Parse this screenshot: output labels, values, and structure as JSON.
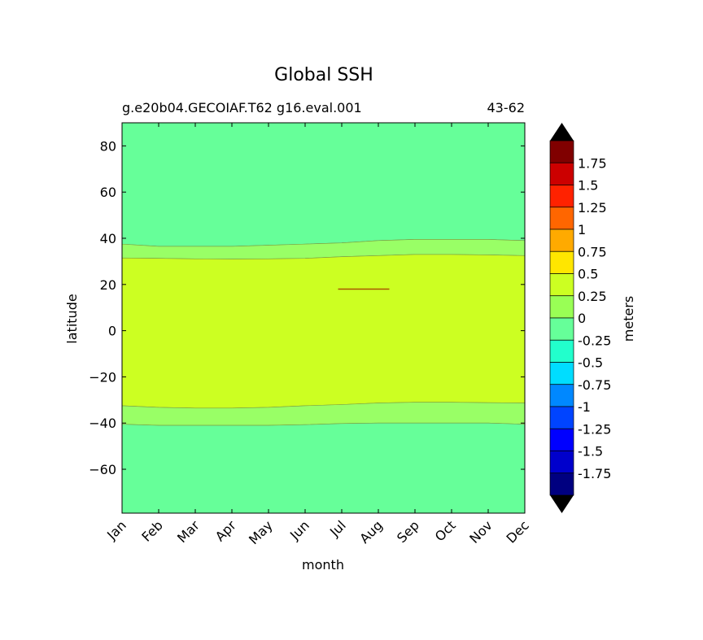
{
  "chart_data": {
    "type": "heatmap",
    "title": "Global SSH",
    "subtitle_left": "g.e20b04.GECOIAF.T62 g16.eval.001",
    "subtitle_right": "43-62",
    "xlabel": "month",
    "ylabel": "latitude",
    "xlim": [
      1,
      12
    ],
    "ylim": [
      -79,
      90
    ],
    "x_ticks": [
      "Jan",
      "Feb",
      "Mar",
      "Apr",
      "May",
      "Jun",
      "Jul",
      "Aug",
      "Sep",
      "Oct",
      "Nov",
      "Dec"
    ],
    "y_ticks": [
      80,
      60,
      40,
      20,
      0,
      -20,
      -40,
      -60
    ],
    "y_tick_labels": [
      "80",
      "60",
      "40",
      "20",
      "0",
      "−20",
      "−40",
      "−60"
    ],
    "months": [
      1,
      2,
      3,
      4,
      5,
      6,
      7,
      8,
      9,
      10,
      11,
      12
    ],
    "contour_bands": [
      {
        "range": "-0.25 to 0",
        "color": "#66ff99",
        "lower_lat": [
          90,
          90,
          90,
          90,
          90,
          90,
          90,
          90,
          90,
          90,
          90,
          90
        ],
        "upper_lat": [
          37.5,
          36.5,
          36.5,
          36.5,
          37,
          37.5,
          38,
          39,
          39.5,
          39.5,
          39.5,
          39
        ]
      },
      {
        "range": "0 to 0.25",
        "color": "#99ff66",
        "lower_lat": [
          37.5,
          36.5,
          36.5,
          36.5,
          37,
          37.5,
          38,
          39,
          39.5,
          39.5,
          39.5,
          39
        ],
        "upper_lat": [
          31.5,
          31.3,
          31.1,
          31,
          31.1,
          31.3,
          32,
          32.5,
          33,
          33,
          32.8,
          32.5
        ]
      },
      {
        "range": "0.25 to 0.5",
        "color": "#ccff22",
        "lower_lat": [
          31.5,
          31.3,
          31.1,
          31,
          31.1,
          31.3,
          32,
          32.5,
          33,
          33,
          32.8,
          32.5
        ],
        "upper_lat": [
          -32.5,
          -33.2,
          -33.5,
          -33.5,
          -33.2,
          -32.5,
          -32,
          -31.3,
          -31,
          -31,
          -31.2,
          -31.3
        ]
      },
      {
        "range": "0 to 0.25",
        "color": "#99ff66",
        "lower_lat": [
          -32.5,
          -33.2,
          -33.5,
          -33.5,
          -33.2,
          -32.5,
          -32,
          -31.3,
          -31,
          -31,
          -31.2,
          -31.3
        ],
        "upper_lat": [
          -40.5,
          -41,
          -41,
          -41,
          -41,
          -40.7,
          -40.2,
          -40,
          -40,
          -40,
          -40,
          -40.5
        ]
      },
      {
        "range": "-0.25 to 0",
        "color": "#66ff99",
        "lower_lat": [
          -40.5,
          -41,
          -41,
          -41,
          -41,
          -40.7,
          -40.2,
          -40,
          -40,
          -40,
          -40,
          -40.5
        ],
        "upper_lat": [
          -79,
          -79,
          -79,
          -79,
          -79,
          -79,
          -79,
          -79,
          -79,
          -79,
          -79,
          -79
        ]
      }
    ],
    "feature_line": {
      "lat": 18,
      "x_start": 6.9,
      "x_end": 8.3,
      "color": "#aa5500"
    },
    "colorbar": {
      "label": "meters",
      "extend": "both",
      "tick_labels": [
        "1.75",
        "1.5",
        "1.25",
        "1",
        "0.75",
        "0.5",
        "0.25",
        "0",
        "-0.25",
        "-0.5",
        "-0.75",
        "-1",
        "-1.25",
        "-1.5",
        "-1.75"
      ],
      "colors_top_to_bottom": [
        "#800000",
        "#cc0000",
        "#ff2200",
        "#ff6600",
        "#ffaa00",
        "#ffe600",
        "#ccff22",
        "#99ff55",
        "#66ff99",
        "#22ffcc",
        "#00ddff",
        "#0088ff",
        "#0044ff",
        "#0000ff",
        "#0000cc",
        "#000080"
      ],
      "extend_color": "#000000"
    }
  }
}
